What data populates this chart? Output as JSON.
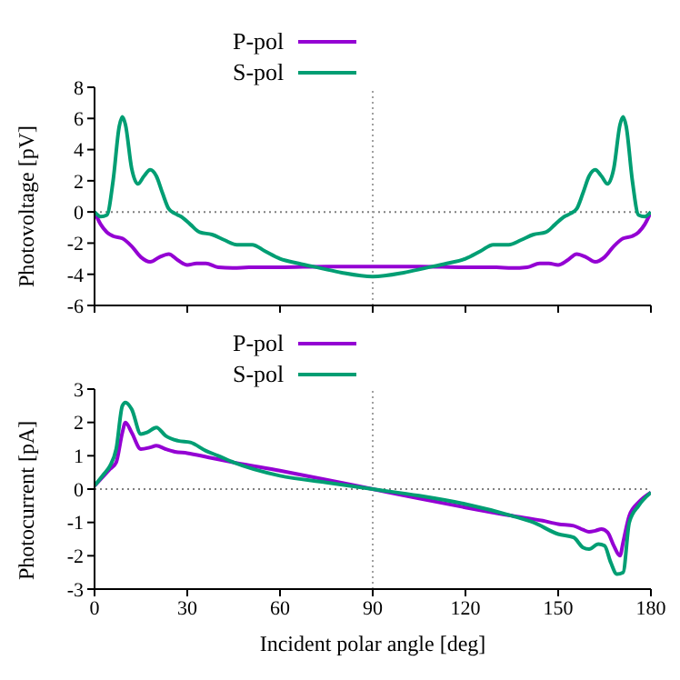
{
  "chart_data": [
    {
      "type": "line",
      "ylabel": "Photovoltage [pV]",
      "xlim": [
        0,
        180
      ],
      "xticks": [
        0,
        30,
        60,
        90,
        120,
        150,
        180
      ],
      "ylim": [
        -6,
        8
      ],
      "yticks": [
        -6,
        -4,
        -2,
        0,
        2,
        4,
        6,
        8
      ],
      "tick_labels": "y",
      "legend": "top",
      "ref_lines": [
        {
          "axis": "y",
          "value": 0,
          "color": "#808080",
          "line_style": "dotted"
        },
        {
          "axis": "x",
          "value": 90,
          "color": "#a0a0a0",
          "line_style": "dotted"
        }
      ],
      "series": [
        {
          "name": "P-pol",
          "color": "#9400d3",
          "x": [
            0,
            2,
            4,
            6,
            9,
            12,
            15,
            18,
            21,
            24,
            27,
            30,
            33,
            36,
            40,
            45,
            50,
            60,
            75,
            90,
            105,
            120,
            130,
            135,
            140,
            144,
            147,
            150,
            153,
            156,
            159,
            162,
            165,
            168,
            171,
            174,
            176,
            178,
            180
          ],
          "values": [
            0,
            -0.8,
            -1.3,
            -1.55,
            -1.7,
            -2.2,
            -2.9,
            -3.2,
            -2.9,
            -2.7,
            -3.1,
            -3.4,
            -3.3,
            -3.3,
            -3.55,
            -3.6,
            -3.55,
            -3.55,
            -3.5,
            -3.5,
            -3.5,
            -3.55,
            -3.55,
            -3.6,
            -3.55,
            -3.3,
            -3.3,
            -3.4,
            -3.1,
            -2.7,
            -2.9,
            -3.2,
            -2.9,
            -2.2,
            -1.7,
            -1.55,
            -1.3,
            -0.8,
            0
          ]
        },
        {
          "name": "S-pol",
          "color": "#009e73",
          "x": [
            0,
            2,
            4,
            6,
            8,
            9,
            10,
            12,
            14,
            16,
            18,
            20,
            22,
            24,
            26,
            28,
            31,
            34,
            38,
            42,
            46,
            51,
            55,
            60,
            66,
            73,
            80,
            90,
            100,
            107,
            114,
            120,
            125,
            129,
            134,
            138,
            142,
            146,
            149,
            152,
            154,
            156,
            158,
            160,
            162,
            164,
            166,
            168,
            170,
            171,
            172,
            174,
            176,
            178,
            180
          ],
          "values": [
            0,
            -0.3,
            -0.2,
            2.0,
            5.5,
            6.1,
            5.6,
            2.8,
            1.8,
            2.3,
            2.7,
            2.3,
            1.2,
            0.2,
            -0.1,
            -0.3,
            -0.8,
            -1.3,
            -1.45,
            -1.8,
            -2.1,
            -2.1,
            -2.5,
            -3.0,
            -3.3,
            -3.6,
            -3.9,
            -4.15,
            -3.9,
            -3.6,
            -3.3,
            -3.0,
            -2.5,
            -2.1,
            -2.1,
            -1.8,
            -1.45,
            -1.3,
            -0.8,
            -0.3,
            -0.1,
            0.2,
            1.2,
            2.3,
            2.7,
            2.3,
            1.8,
            2.8,
            5.6,
            6.1,
            5.5,
            2.0,
            -0.2,
            -0.3,
            0
          ]
        }
      ]
    },
    {
      "type": "line",
      "xlabel": "Incident polar angle [deg]",
      "ylabel": "Photocurrent [pA]",
      "xlim": [
        0,
        180
      ],
      "xticks": [
        0,
        30,
        60,
        90,
        120,
        150,
        180
      ],
      "ylim": [
        -3,
        3
      ],
      "yticks": [
        -3,
        -2,
        -1,
        0,
        1,
        2,
        3
      ],
      "legend": "top",
      "ref_lines": [
        {
          "axis": "y",
          "value": 0,
          "color": "#808080",
          "line_style": "dotted"
        },
        {
          "axis": "x",
          "value": 90,
          "color": "#a0a0a0",
          "line_style": "dotted"
        }
      ],
      "series": [
        {
          "name": "P-pol",
          "color": "#9400d3",
          "x": [
            0,
            3,
            5,
            7,
            9,
            10,
            12,
            15,
            18,
            20,
            23,
            26,
            30,
            37,
            45,
            60,
            75,
            90,
            105,
            120,
            135,
            145,
            150,
            155,
            158,
            160,
            162,
            164,
            166,
            168,
            170,
            171,
            173,
            176,
            180
          ],
          "values": [
            0.1,
            0.4,
            0.6,
            0.8,
            1.7,
            2.0,
            1.7,
            1.2,
            1.25,
            1.3,
            1.2,
            1.12,
            1.08,
            0.95,
            0.8,
            0.55,
            0.28,
            0,
            -0.28,
            -0.55,
            -0.8,
            -0.95,
            -1.05,
            -1.1,
            -1.22,
            -1.28,
            -1.25,
            -1.2,
            -1.3,
            -1.7,
            -2.0,
            -1.6,
            -0.8,
            -0.4,
            -0.1
          ]
        },
        {
          "name": "S-pol",
          "color": "#009e73",
          "x": [
            0,
            3,
            5,
            7,
            9,
            10,
            12,
            15,
            17,
            20,
            23,
            27,
            31,
            36,
            40,
            45,
            60,
            75,
            90,
            105,
            120,
            135,
            142,
            150,
            155,
            158,
            160,
            163,
            165,
            167,
            169,
            171,
            173,
            176,
            180
          ],
          "values": [
            0.1,
            0.45,
            0.7,
            1.2,
            2.5,
            2.6,
            2.4,
            1.65,
            1.7,
            1.85,
            1.6,
            1.45,
            1.4,
            1.15,
            1.0,
            0.8,
            0.4,
            0.2,
            0,
            -0.2,
            -0.45,
            -0.8,
            -1.0,
            -1.35,
            -1.45,
            -1.75,
            -1.8,
            -1.65,
            -1.7,
            -2.2,
            -2.55,
            -2.5,
            -1.0,
            -0.5,
            -0.1
          ]
        }
      ]
    }
  ]
}
